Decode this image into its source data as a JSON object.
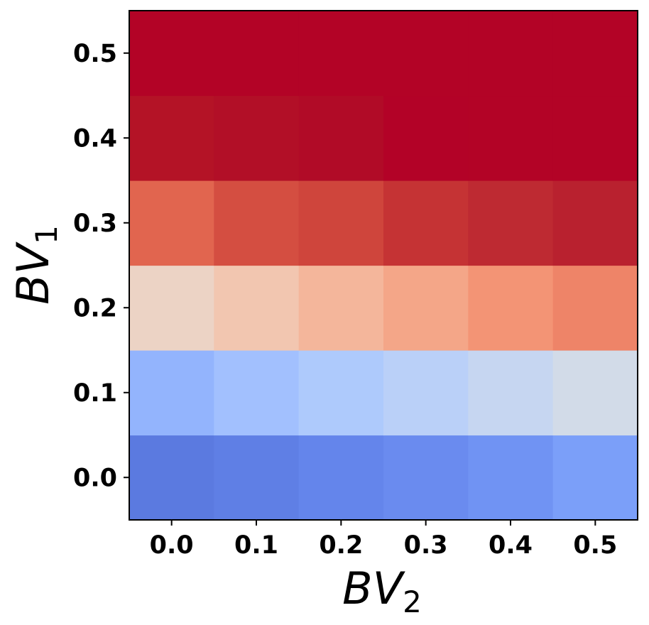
{
  "chart_data": {
    "type": "heatmap",
    "title": "",
    "x": [
      0.0,
      0.1,
      0.2,
      0.3,
      0.4,
      0.5
    ],
    "y": [
      0.0,
      0.1,
      0.2,
      0.3,
      0.4,
      0.5
    ],
    "x_tick_labels": [
      "0.0",
      "0.1",
      "0.2",
      "0.3",
      "0.4",
      "0.5"
    ],
    "y_tick_labels": [
      "0.0",
      "0.1",
      "0.2",
      "0.3",
      "0.4",
      "0.5"
    ],
    "xlabel": {
      "base": "BV",
      "sub": "2"
    },
    "ylabel": {
      "base": "BV",
      "sub": "1"
    },
    "colormap": "coolwarm",
    "grid": false,
    "colorbar": false,
    "cells": [
      {
        "y": 0.0,
        "colors": [
          "#5b7ae0",
          "#5f7fe5",
          "#6485eb",
          "#6a8bef",
          "#7093f3",
          "#7b9ff9"
        ]
      },
      {
        "y": 0.1,
        "colors": [
          "#93b4fd",
          "#a2c0fe",
          "#aecafc",
          "#bad0f8",
          "#c6d6f1",
          "#d2dbe8"
        ]
      },
      {
        "y": 0.2,
        "colors": [
          "#ecd3c5",
          "#f2c6b0",
          "#f4b69b",
          "#f4a688",
          "#f39475",
          "#ee8468"
        ]
      },
      {
        "y": 0.3,
        "colors": [
          "#e1654f",
          "#d44e41",
          "#cf453c",
          "#c53334",
          "#be2a32",
          "#b9212f"
        ]
      },
      {
        "y": 0.4,
        "colors": [
          "#b41326",
          "#b20f27",
          "#b10b27",
          "#b30227",
          "#b30326",
          "#b30326"
        ]
      },
      {
        "y": 0.5,
        "colors": [
          "#b30326",
          "#b30326",
          "#b30326",
          "#b30326",
          "#b30326",
          "#b30326"
        ]
      }
    ]
  }
}
